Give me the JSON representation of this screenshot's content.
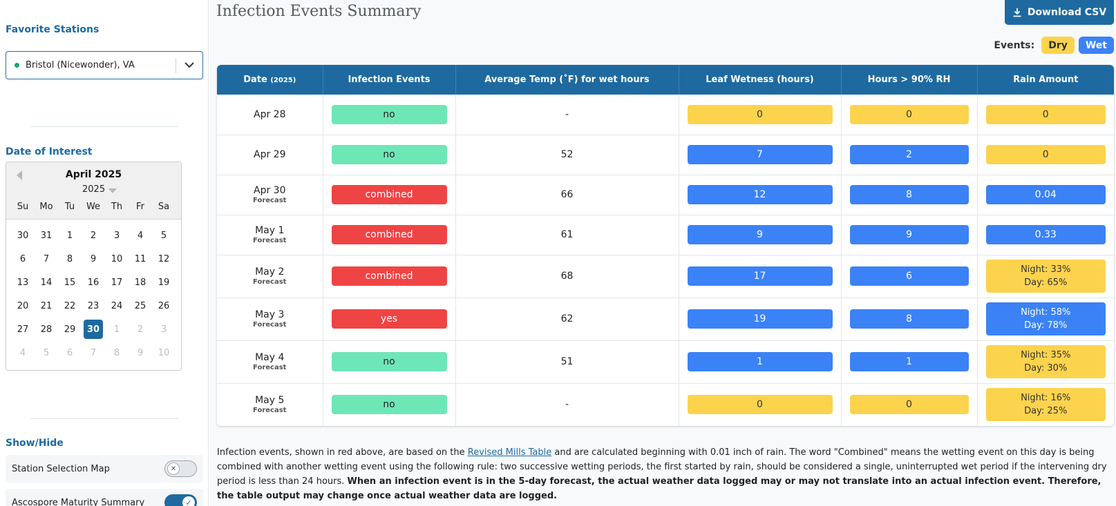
{
  "sidebar": {
    "favorite_title": "Favorite Stations",
    "station": "Bristol (Nicewonder), VA",
    "date_title": "Date of Interest",
    "calendar": {
      "month_label": "April 2025",
      "year": "2025",
      "weekdays": [
        "Su",
        "Mo",
        "Tu",
        "We",
        "Th",
        "Fr",
        "Sa"
      ],
      "days": [
        {
          "d": "30",
          "m": false
        },
        {
          "d": "31",
          "m": false
        },
        {
          "d": "1",
          "m": false
        },
        {
          "d": "2",
          "m": false
        },
        {
          "d": "3",
          "m": false
        },
        {
          "d": "4",
          "m": false
        },
        {
          "d": "5",
          "m": false
        },
        {
          "d": "6",
          "m": false
        },
        {
          "d": "7",
          "m": false
        },
        {
          "d": "8",
          "m": false
        },
        {
          "d": "9",
          "m": false
        },
        {
          "d": "10",
          "m": false
        },
        {
          "d": "11",
          "m": false
        },
        {
          "d": "12",
          "m": false
        },
        {
          "d": "13",
          "m": false
        },
        {
          "d": "14",
          "m": false
        },
        {
          "d": "15",
          "m": false
        },
        {
          "d": "16",
          "m": false
        },
        {
          "d": "17",
          "m": false
        },
        {
          "d": "18",
          "m": false
        },
        {
          "d": "19",
          "m": false
        },
        {
          "d": "20",
          "m": false
        },
        {
          "d": "21",
          "m": false
        },
        {
          "d": "22",
          "m": false
        },
        {
          "d": "23",
          "m": false
        },
        {
          "d": "24",
          "m": false
        },
        {
          "d": "25",
          "m": false
        },
        {
          "d": "26",
          "m": false
        },
        {
          "d": "27",
          "m": false
        },
        {
          "d": "28",
          "m": false
        },
        {
          "d": "29",
          "m": false
        },
        {
          "d": "30",
          "m": false,
          "sel": true
        },
        {
          "d": "1",
          "m": true
        },
        {
          "d": "2",
          "m": true
        },
        {
          "d": "3",
          "m": true
        },
        {
          "d": "4",
          "m": true
        },
        {
          "d": "5",
          "m": true
        },
        {
          "d": "6",
          "m": true
        },
        {
          "d": "7",
          "m": true
        },
        {
          "d": "8",
          "m": true
        },
        {
          "d": "9",
          "m": true
        },
        {
          "d": "10",
          "m": true
        }
      ]
    },
    "showhide_title": "Show/Hide",
    "toggles": [
      {
        "label": "Station Selection Map",
        "on": false
      },
      {
        "label": "Ascospore Maturity Summary",
        "on": true
      }
    ]
  },
  "main": {
    "title": "Infection Events Summary",
    "download_label": "Download CSV",
    "legend": {
      "label": "Events:",
      "dry": "Dry",
      "wet": "Wet"
    },
    "headers": {
      "date": "Date",
      "date_year": "(2025)",
      "infection": "Infection Events",
      "avg_temp": "Average Temp (˚F) for wet hours",
      "leaf_wetness": "Leaf Wetness (hours)",
      "rh_hours": "Hours > 90% RH",
      "rain": "Rain Amount"
    },
    "rows": [
      {
        "date": "Apr 28",
        "sub": "",
        "infection": "no",
        "inf_type": "no",
        "temp": "-",
        "leaf": "0",
        "leaf_type": "dry",
        "rh": "0",
        "rh_type": "dry",
        "rain": [
          "0"
        ],
        "rain_type": "dry"
      },
      {
        "date": "Apr 29",
        "sub": "",
        "infection": "no",
        "inf_type": "no",
        "temp": "52",
        "leaf": "7",
        "leaf_type": "wet",
        "rh": "2",
        "rh_type": "wet",
        "rain": [
          "0"
        ],
        "rain_type": "dry"
      },
      {
        "date": "Apr 30",
        "sub": "Forecast",
        "infection": "combined",
        "inf_type": "yes",
        "temp": "66",
        "leaf": "12",
        "leaf_type": "wet",
        "rh": "8",
        "rh_type": "wet",
        "rain": [
          "0.04"
        ],
        "rain_type": "wet"
      },
      {
        "date": "May 1",
        "sub": "Forecast",
        "infection": "combined",
        "inf_type": "yes",
        "temp": "61",
        "leaf": "9",
        "leaf_type": "wet",
        "rh": "9",
        "rh_type": "wet",
        "rain": [
          "0.33"
        ],
        "rain_type": "wet"
      },
      {
        "date": "May 2",
        "sub": "Forecast",
        "infection": "combined",
        "inf_type": "yes",
        "temp": "68",
        "leaf": "17",
        "leaf_type": "wet",
        "rh": "6",
        "rh_type": "wet",
        "rain": [
          "Night: 33%",
          "Day: 65%"
        ],
        "rain_type": "dry"
      },
      {
        "date": "May 3",
        "sub": "Forecast",
        "infection": "yes",
        "inf_type": "yes",
        "temp": "62",
        "leaf": "19",
        "leaf_type": "wet",
        "rh": "8",
        "rh_type": "wet",
        "rain": [
          "Night: 58%",
          "Day: 78%"
        ],
        "rain_type": "wet"
      },
      {
        "date": "May 4",
        "sub": "Forecast",
        "infection": "no",
        "inf_type": "no",
        "temp": "51",
        "leaf": "1",
        "leaf_type": "wet",
        "rh": "1",
        "rh_type": "wet",
        "rain": [
          "Night: 35%",
          "Day: 30%"
        ],
        "rain_type": "dry"
      },
      {
        "date": "May 5",
        "sub": "Forecast",
        "infection": "no",
        "inf_type": "no",
        "temp": "-",
        "leaf": "0",
        "leaf_type": "dry",
        "rh": "0",
        "rh_type": "dry",
        "rain": [
          "Night: 16%",
          "Day: 25%"
        ],
        "rain_type": "dry"
      }
    ],
    "footnote": {
      "part1": "Infection events, shown in red above, are based on the ",
      "link": "Revised Mills Table",
      "part2": " and are calculated beginning with 0.01 inch of rain. The word \"Combined\" means the wetting event on this day is being combined with another wetting event using the following rule: two successive wetting periods, the first started by rain, should be considered a single, uninterrupted wet period if the intervening dry period is less than 24 hours. ",
      "bold": "When an infection event is in the 5-day forecast, the actual weather data logged may or may not translate into an actual infection event. Therefore, the table output may change once actual weather data are logged."
    }
  }
}
